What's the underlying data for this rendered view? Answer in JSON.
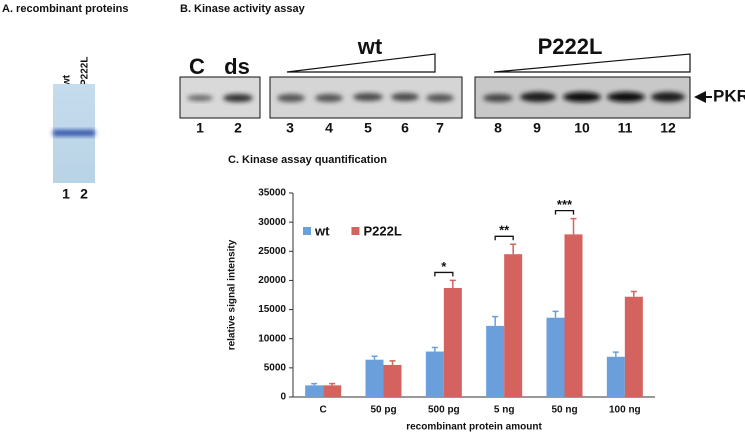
{
  "panel_a": {
    "title": "A. recombinant proteins",
    "lanes": [
      "wt",
      "P222L"
    ],
    "lane_numbers": [
      "1",
      "2"
    ]
  },
  "panel_b": {
    "title": "B.  Kinase activity assay",
    "control_lanes": [
      "C",
      "ds"
    ],
    "groups": [
      "wt",
      "P222L"
    ],
    "target": "PKR",
    "lane_numbers": [
      "1",
      "2",
      "3",
      "4",
      "5",
      "6",
      "7",
      "8",
      "9",
      "10",
      "11",
      "12"
    ]
  },
  "chart_data": {
    "type": "bar",
    "title": "C.  Kinase assay quantification",
    "x_label": "recombinant protein amount",
    "y_label": "relative signal intensity",
    "categories": [
      "C",
      "50 pg",
      "500 pg",
      "5 ng",
      "50 ng",
      "100 ng"
    ],
    "series": [
      {
        "name": "wt",
        "color": "#6a9fdc",
        "values": [
          2000,
          6400,
          7800,
          12200,
          13600,
          6900
        ],
        "errors": [
          300,
          600,
          700,
          1600,
          1100,
          800
        ]
      },
      {
        "name": "P222L",
        "color": "#d4625f",
        "values": [
          2000,
          5500,
          18700,
          24500,
          27900,
          17200
        ],
        "errors": [
          300,
          700,
          1300,
          1700,
          2700,
          900
        ]
      }
    ],
    "ylim": [
      0,
      35000
    ],
    "yticks": [
      0,
      5000,
      10000,
      15000,
      20000,
      25000,
      30000,
      35000
    ],
    "legend": "upper left",
    "annotations": [
      {
        "text": "*",
        "category": "500 pg"
      },
      {
        "text": "**",
        "category": "5 ng"
      },
      {
        "text": "***",
        "category": "50 ng"
      }
    ]
  }
}
